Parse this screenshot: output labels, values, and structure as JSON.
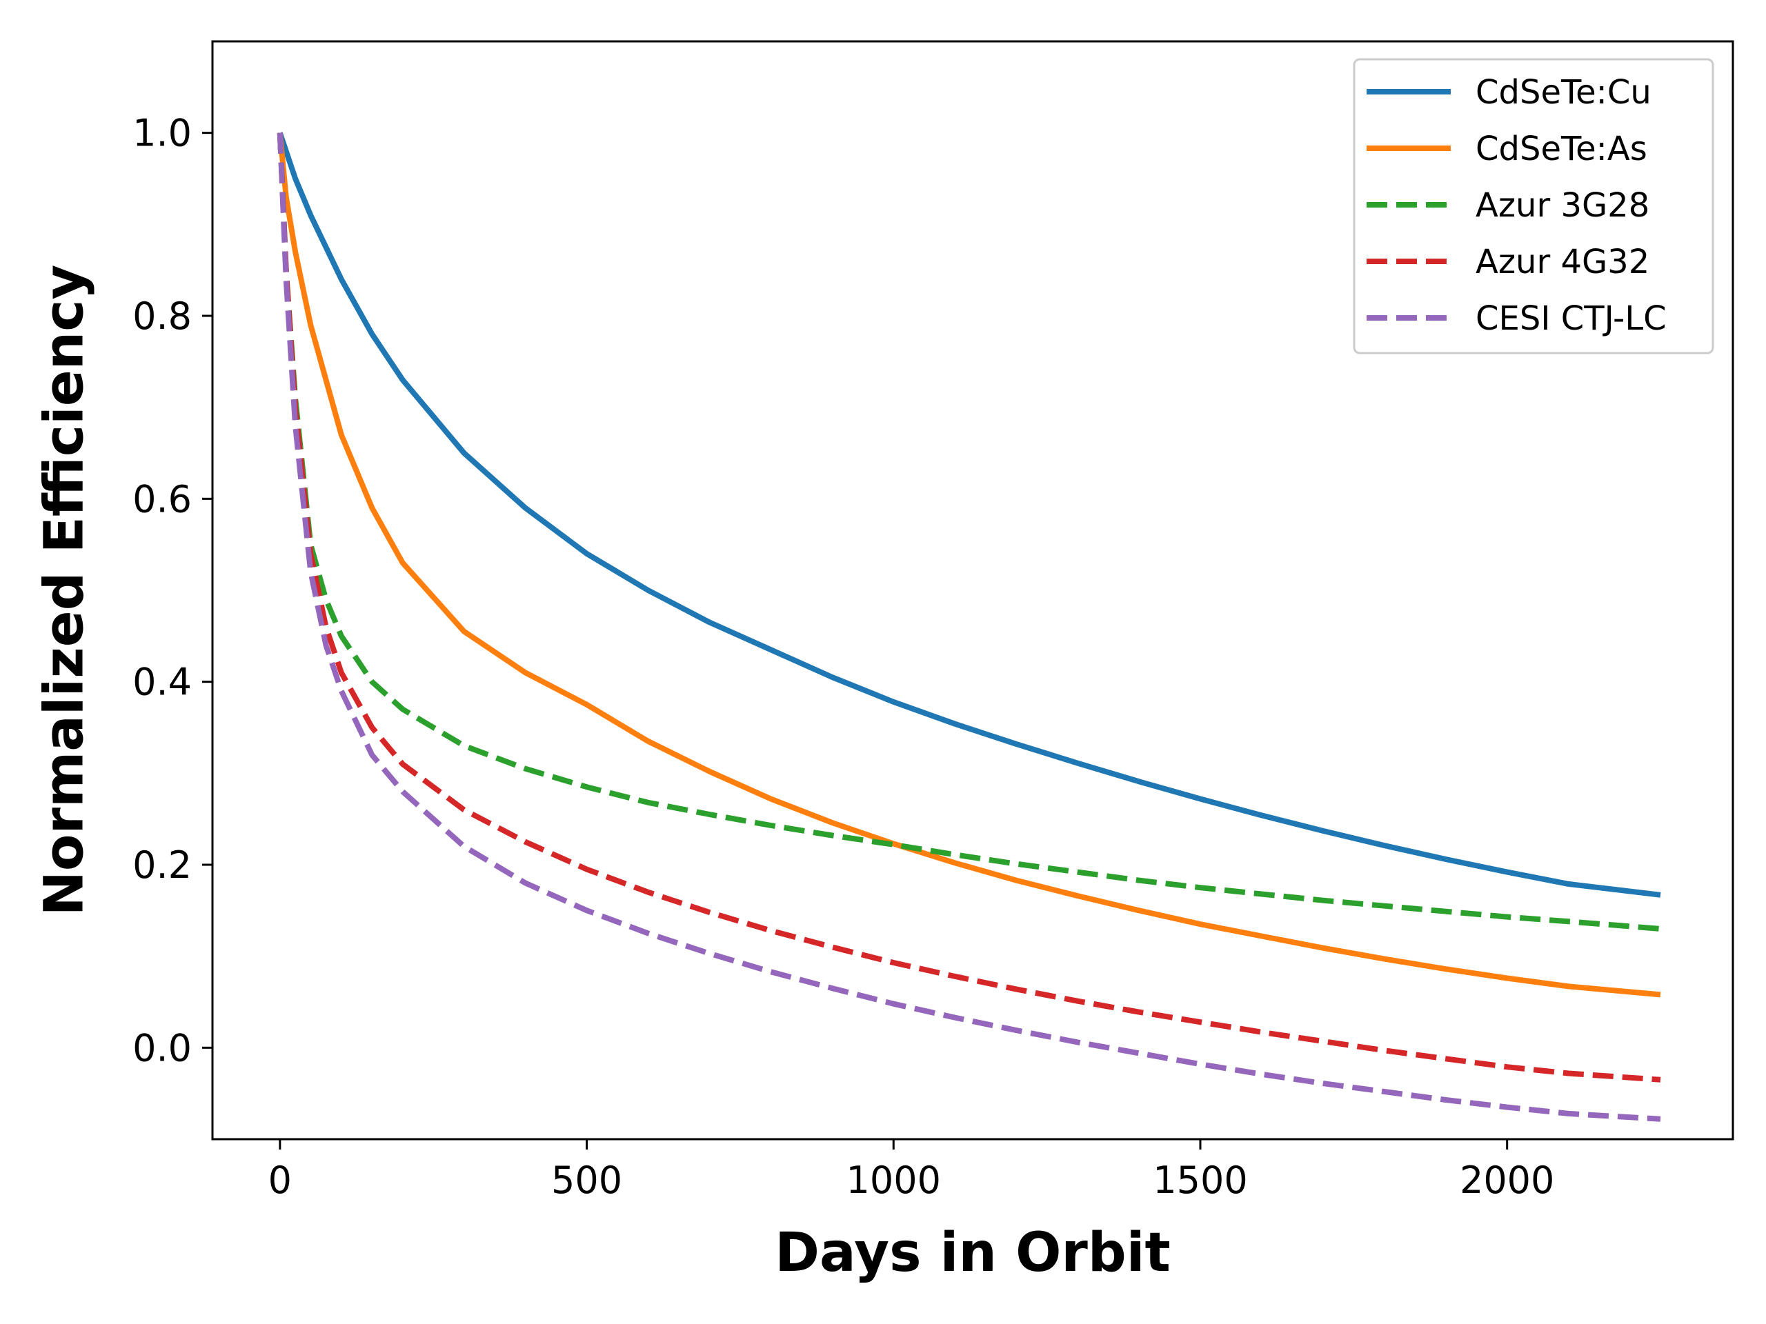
{
  "chart_data": {
    "type": "line",
    "title": "",
    "xlabel": "Days in Orbit",
    "ylabel": "Normalized Efficiency",
    "xlim": [
      -110,
      2368
    ],
    "ylim": [
      -0.1,
      1.1
    ],
    "xticks": [
      0,
      500,
      1000,
      1500,
      2000
    ],
    "yticks": [
      0.0,
      0.2,
      0.4,
      0.6,
      0.8,
      1.0
    ],
    "xtick_labels": [
      "0",
      "500",
      "1000",
      "1500",
      "2000"
    ],
    "ytick_labels": [
      "0.0",
      "0.2",
      "0.4",
      "0.6",
      "0.8",
      "1.0"
    ],
    "grid": false,
    "legend_position": "top-right",
    "series": [
      {
        "name": "CdSeTe:Cu",
        "color": "#1f77b4",
        "dash": "solid",
        "x": [
          0,
          25,
          50,
          100,
          150,
          200,
          300,
          400,
          500,
          600,
          700,
          800,
          900,
          1000,
          1100,
          1200,
          1300,
          1400,
          1500,
          1600,
          1700,
          1800,
          1900,
          2000,
          2100,
          2250
        ],
        "y": [
          1.0,
          0.95,
          0.91,
          0.84,
          0.78,
          0.73,
          0.65,
          0.59,
          0.54,
          0.5,
          0.465,
          0.435,
          0.405,
          0.378,
          0.354,
          0.332,
          0.311,
          0.291,
          0.272,
          0.254,
          0.237,
          0.221,
          0.206,
          0.192,
          0.179,
          0.167
        ]
      },
      {
        "name": "CdSeTe:As",
        "color": "#ff7f0e",
        "dash": "solid",
        "x": [
          0,
          10,
          25,
          50,
          100,
          150,
          200,
          300,
          400,
          500,
          600,
          700,
          800,
          900,
          1000,
          1100,
          1200,
          1300,
          1400,
          1500,
          1600,
          1700,
          1800,
          1900,
          2000,
          2100,
          2250
        ],
        "y": [
          1.0,
          0.93,
          0.87,
          0.79,
          0.67,
          0.59,
          0.53,
          0.455,
          0.41,
          0.375,
          0.335,
          0.302,
          0.272,
          0.246,
          0.223,
          0.202,
          0.183,
          0.166,
          0.15,
          0.135,
          0.122,
          0.109,
          0.097,
          0.086,
          0.076,
          0.067,
          0.058
        ]
      },
      {
        "name": "Azur 3G28",
        "color": "#2ca02c",
        "dash": "dashed",
        "x": [
          0,
          10,
          25,
          50,
          75,
          100,
          150,
          200,
          300,
          400,
          500,
          600,
          700,
          800,
          900,
          1000,
          1100,
          1200,
          1300,
          1400,
          1500,
          1600,
          1700,
          1800,
          1900,
          2000,
          2100,
          2250
        ],
        "y": [
          1.0,
          0.85,
          0.71,
          0.55,
          0.49,
          0.45,
          0.4,
          0.37,
          0.33,
          0.305,
          0.285,
          0.268,
          0.255,
          0.243,
          0.232,
          0.222,
          0.211,
          0.201,
          0.192,
          0.183,
          0.175,
          0.168,
          0.161,
          0.155,
          0.149,
          0.143,
          0.138,
          0.13
        ]
      },
      {
        "name": "Azur 4G32",
        "color": "#d62728",
        "dash": "dashed",
        "x": [
          0,
          10,
          25,
          50,
          75,
          100,
          150,
          200,
          300,
          400,
          500,
          600,
          700,
          800,
          900,
          1000,
          1100,
          1200,
          1300,
          1400,
          1500,
          1600,
          1700,
          1800,
          1900,
          2000,
          2100,
          2250
        ],
        "y": [
          1.0,
          0.85,
          0.7,
          0.54,
          0.46,
          0.41,
          0.35,
          0.31,
          0.26,
          0.225,
          0.195,
          0.17,
          0.148,
          0.128,
          0.11,
          0.093,
          0.078,
          0.064,
          0.051,
          0.039,
          0.028,
          0.017,
          0.007,
          -0.003,
          -0.012,
          -0.021,
          -0.028,
          -0.035
        ]
      },
      {
        "name": "CESI CTJ-LC",
        "color": "#9467bd",
        "dash": "dashed",
        "x": [
          0,
          10,
          25,
          50,
          75,
          100,
          150,
          200,
          300,
          400,
          500,
          600,
          700,
          800,
          900,
          1000,
          1100,
          1200,
          1300,
          1400,
          1500,
          1600,
          1700,
          1800,
          1900,
          2000,
          2100,
          2250
        ],
        "y": [
          1.0,
          0.84,
          0.68,
          0.52,
          0.44,
          0.39,
          0.32,
          0.28,
          0.22,
          0.18,
          0.15,
          0.125,
          0.103,
          0.083,
          0.065,
          0.048,
          0.033,
          0.019,
          0.006,
          -0.006,
          -0.018,
          -0.029,
          -0.039,
          -0.048,
          -0.057,
          -0.065,
          -0.072,
          -0.078
        ]
      }
    ]
  }
}
